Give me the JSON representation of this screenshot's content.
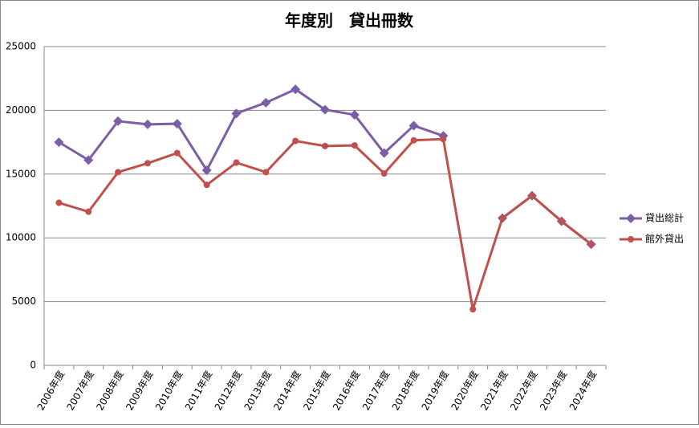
{
  "chart_data": {
    "type": "line",
    "title": "年度別　貸出冊数",
    "categories": [
      "2006年度",
      "2007年度",
      "2008年度",
      "2009年度",
      "2010年度",
      "2011年度",
      "2012年度",
      "2013年度",
      "2014年度",
      "2015年度",
      "2016年度",
      "2017年度",
      "2018年度",
      "2019年度",
      "2020年度",
      "2021年度",
      "2022年度",
      "2023年度",
      "2024年度"
    ],
    "series": [
      {
        "name": "貸出総計",
        "color": "#7b5ea7",
        "marker": "diamond",
        "values": [
          17500,
          16100,
          19150,
          18900,
          18950,
          15300,
          19750,
          20600,
          21650,
          20050,
          19650,
          16650,
          18800,
          18000,
          null,
          11550,
          13300,
          11300,
          9500
        ]
      },
      {
        "name": "館外貸出",
        "color": "#c0504d",
        "marker": "circle",
        "values": [
          12750,
          12050,
          15150,
          15850,
          16650,
          14150,
          15900,
          15150,
          17600,
          17200,
          17250,
          15050,
          17650,
          17750,
          4400,
          11550,
          13300,
          11300,
          9500
        ]
      }
    ],
    "ylim": [
      0,
      25000
    ],
    "yticks": [
      0,
      5000,
      10000,
      15000,
      20000,
      25000
    ],
    "grid": true,
    "legend": "right"
  }
}
